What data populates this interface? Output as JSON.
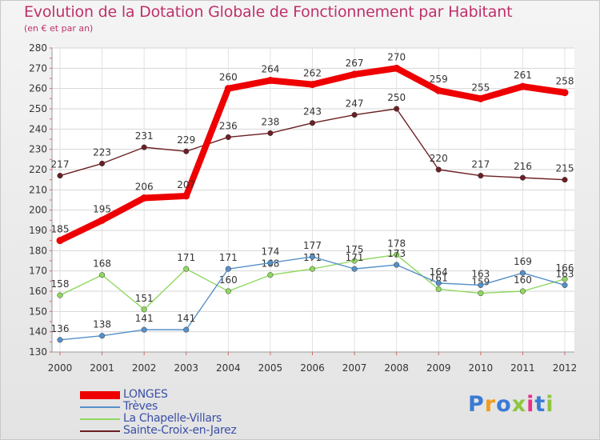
{
  "title": "Evolution de la Dotation Globale de Fonctionnement par Habitant",
  "subtitle": "(en € et par an)",
  "logo": {
    "text": "Proxiti",
    "letter_colors": [
      "#3a7bd5",
      "#f29c1f",
      "#3a7bd5",
      "#8cc63f",
      "#e8308a",
      "#3a7bd5",
      "#8cc63f"
    ]
  },
  "chart_data": {
    "type": "line",
    "categories": [
      "2000",
      "2001",
      "2002",
      "2003",
      "2004",
      "2005",
      "2006",
      "2007",
      "2008",
      "2009",
      "2010",
      "2011",
      "2012"
    ],
    "ylim": [
      130,
      280
    ],
    "yticks": [
      130,
      140,
      150,
      160,
      170,
      180,
      190,
      200,
      210,
      220,
      230,
      240,
      250,
      260,
      270,
      280
    ],
    "grid": true,
    "legend_position": "bottom-left",
    "series": [
      {
        "name": "LONGES",
        "color": "#ee0000",
        "values": [
          185,
          195,
          206,
          207,
          260,
          264,
          262,
          267,
          270,
          259,
          255,
          261,
          258
        ]
      },
      {
        "name": "Trèves",
        "color": "#5590c8",
        "values": [
          136,
          138,
          141,
          141,
          171,
          174,
          177,
          171,
          173,
          164,
          163,
          169,
          163
        ]
      },
      {
        "name": "La Chapelle-Villars",
        "color": "#90d860",
        "values": [
          158,
          168,
          151,
          171,
          160,
          168,
          171,
          175,
          178,
          161,
          159,
          160,
          166
        ]
      },
      {
        "name": "Sainte-Croix-en-Jarez",
        "color": "#6b1f24",
        "values": [
          217,
          223,
          231,
          229,
          236,
          238,
          243,
          247,
          250,
          220,
          217,
          216,
          215
        ]
      }
    ]
  }
}
